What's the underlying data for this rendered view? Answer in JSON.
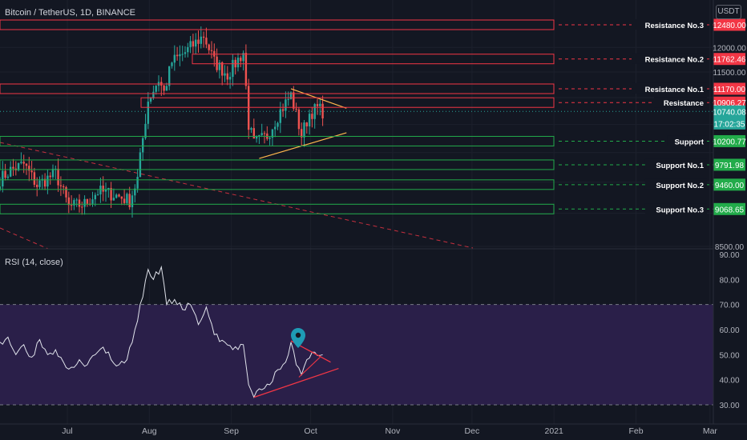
{
  "header": {
    "symbol_line": "Bitcoin / TetherUS, 1D, BINANCE",
    "currency_unit": "USDT",
    "rsi_title": "RSI (14, close)"
  },
  "colors": {
    "background": "#131722",
    "up_candle": "#26a69a",
    "down_candle": "#ef5350",
    "resistance": "#f23645",
    "support": "#22ab4a",
    "rsi_band_fill": "#2a1f49",
    "rsi_line": "#e0e3eb",
    "trend_orange": "#ffb74d",
    "axis_text": "#b2b5be"
  },
  "chart_data": [
    {
      "type": "candlestick",
      "title": "Bitcoin / TetherUS, 1D, BINANCE",
      "x_tick_labels": [
        "Jul",
        "Aug",
        "Sep",
        "Oct",
        "Nov",
        "Dec",
        "2021",
        "Feb",
        "Mar"
      ],
      "y_tick_labels": [
        "12000.00",
        "11500.00",
        "8500.00"
      ],
      "ylim": [
        8450,
        12800
      ],
      "last_price": "10740.08",
      "countdown": "17:02:35",
      "levels": [
        {
          "name": "Resistance No.3",
          "value": 12480.0,
          "label": "12480.00",
          "kind": "resistance"
        },
        {
          "name": "Resistance No.2",
          "value": 11762.46,
          "label": "11762.46",
          "kind": "resistance"
        },
        {
          "name": "Resistance No.1",
          "value": 11170.0,
          "label": "11170.00",
          "kind": "resistance"
        },
        {
          "name": "Resistance",
          "value": 10906.27,
          "label": "10906.27",
          "kind": "resistance"
        },
        {
          "name": "Support",
          "value": 10200.77,
          "label": "10200.77",
          "kind": "support"
        },
        {
          "name": "Support No.1",
          "value": 9791.98,
          "label": "9791.98",
          "kind": "support"
        },
        {
          "name": "Support No.2",
          "value": 9460.0,
          "label": "9460.00",
          "kind": "support"
        },
        {
          "name": "Support No.3",
          "value": 9068.65,
          "label": "9068.65",
          "kind": "support"
        }
      ],
      "ohlc_anchors": [
        {
          "date": "2020-06-01",
          "close": 9550
        },
        {
          "date": "2020-06-05",
          "close": 9700
        },
        {
          "date": "2020-06-10",
          "close": 9800
        },
        {
          "date": "2020-06-15",
          "close": 9450
        },
        {
          "date": "2020-06-22",
          "close": 9650
        },
        {
          "date": "2020-06-27",
          "close": 9100
        },
        {
          "date": "2020-07-03",
          "close": 9150
        },
        {
          "date": "2020-07-08",
          "close": 9350
        },
        {
          "date": "2020-07-14",
          "close": 9300
        },
        {
          "date": "2020-07-20",
          "close": 9200
        },
        {
          "date": "2020-07-23",
          "close": 9550
        },
        {
          "date": "2020-07-27",
          "close": 10950
        },
        {
          "date": "2020-07-31",
          "close": 11350
        },
        {
          "date": "2020-08-02",
          "close": 11100
        },
        {
          "date": "2020-08-05",
          "close": 11700
        },
        {
          "date": "2020-08-10",
          "close": 11900
        },
        {
          "date": "2020-08-17",
          "close": 12250
        },
        {
          "date": "2020-08-21",
          "close": 11700
        },
        {
          "date": "2020-08-26",
          "close": 11450
        },
        {
          "date": "2020-09-01",
          "close": 11900
        },
        {
          "date": "2020-09-03",
          "close": 10500
        },
        {
          "date": "2020-09-05",
          "close": 10150
        },
        {
          "date": "2020-09-10",
          "close": 10300
        },
        {
          "date": "2020-09-15",
          "close": 10750
        },
        {
          "date": "2020-09-19",
          "close": 11050
        },
        {
          "date": "2020-09-23",
          "close": 10300
        },
        {
          "date": "2020-09-26",
          "close": 10700
        },
        {
          "date": "2020-09-29",
          "close": 10800
        },
        {
          "date": "2020-10-01",
          "close": 10740
        }
      ]
    },
    {
      "type": "line",
      "title": "RSI (14, close)",
      "y_tick_labels": [
        "90.00",
        "80.00",
        "70.00",
        "60.00",
        "50.00",
        "40.00",
        "30.00"
      ],
      "ylim": [
        27,
        90
      ],
      "band": [
        30,
        70
      ],
      "series": [
        {
          "points": [
            {
              "date": "2020-06-01",
              "value": 55
            },
            {
              "date": "2020-06-04",
              "value": 57
            },
            {
              "date": "2020-06-07",
              "value": 50
            },
            {
              "date": "2020-06-10",
              "value": 54
            },
            {
              "date": "2020-06-13",
              "value": 49
            },
            {
              "date": "2020-06-16",
              "value": 56
            },
            {
              "date": "2020-06-19",
              "value": 50
            },
            {
              "date": "2020-06-22",
              "value": 52
            },
            {
              "date": "2020-06-25",
              "value": 47
            },
            {
              "date": "2020-06-28",
              "value": 45
            },
            {
              "date": "2020-07-01",
              "value": 48
            },
            {
              "date": "2020-07-04",
              "value": 46
            },
            {
              "date": "2020-07-07",
              "value": 50
            },
            {
              "date": "2020-07-10",
              "value": 53
            },
            {
              "date": "2020-07-13",
              "value": 48
            },
            {
              "date": "2020-07-16",
              "value": 46
            },
            {
              "date": "2020-07-19",
              "value": 48
            },
            {
              "date": "2020-07-22",
              "value": 60
            },
            {
              "date": "2020-07-25",
              "value": 73
            },
            {
              "date": "2020-07-27",
              "value": 84
            },
            {
              "date": "2020-07-29",
              "value": 80
            },
            {
              "date": "2020-08-01",
              "value": 85
            },
            {
              "date": "2020-08-03",
              "value": 70
            },
            {
              "date": "2020-08-06",
              "value": 72
            },
            {
              "date": "2020-08-09",
              "value": 68
            },
            {
              "date": "2020-08-12",
              "value": 70
            },
            {
              "date": "2020-08-15",
              "value": 62
            },
            {
              "date": "2020-08-18",
              "value": 69
            },
            {
              "date": "2020-08-21",
              "value": 58
            },
            {
              "date": "2020-08-25",
              "value": 55
            },
            {
              "date": "2020-08-28",
              "value": 52
            },
            {
              "date": "2020-09-01",
              "value": 54
            },
            {
              "date": "2020-09-03",
              "value": 38
            },
            {
              "date": "2020-09-05",
              "value": 33
            },
            {
              "date": "2020-09-08",
              "value": 36
            },
            {
              "date": "2020-09-11",
              "value": 38
            },
            {
              "date": "2020-09-14",
              "value": 44
            },
            {
              "date": "2020-09-17",
              "value": 47
            },
            {
              "date": "2020-09-19",
              "value": 55
            },
            {
              "date": "2020-09-21",
              "value": 46
            },
            {
              "date": "2020-09-23",
              "value": 42
            },
            {
              "date": "2020-09-25",
              "value": 48
            },
            {
              "date": "2020-09-28",
              "value": 51
            },
            {
              "date": "2020-10-01",
              "value": 50
            }
          ]
        }
      ]
    }
  ]
}
